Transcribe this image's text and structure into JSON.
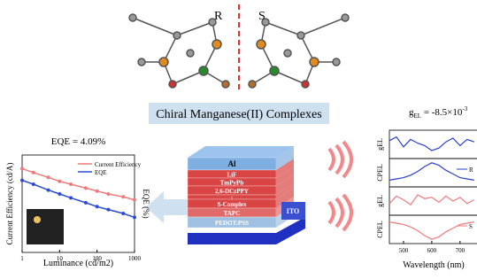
{
  "molecule_labels": [
    "R",
    "S"
  ],
  "banner": "Chiral Manganese(II) Complexes",
  "device": {
    "layers": [
      "Al",
      "LiF",
      "TmPyPb",
      "2,6-DCzPPY",
      ":",
      "S-Complex",
      "TAPC",
      "PEDOT:PSS"
    ],
    "substrate": "ITO"
  },
  "chart_data": [
    {
      "type": "line",
      "title": "EQE = 4.09%",
      "xlabel": "Luminance (cd/m2)",
      "ylabel": "Current Efficiency (cd/A)",
      "y2label": "EQE (%)",
      "log_x": true,
      "xlim": [
        1,
        1000
      ],
      "xticks": [
        1,
        10,
        100,
        1000
      ],
      "ylim": [
        0,
        10
      ],
      "y2lim": [
        0,
        10
      ],
      "legend": "upper right",
      "x": [
        1,
        2,
        5,
        10,
        20,
        50,
        100,
        200,
        500,
        1000
      ],
      "series": [
        {
          "name": "Current Efficiency",
          "color": "#f07a7a",
          "values": [
            8.6,
            8.2,
            7.7,
            7.3,
            7.0,
            6.6,
            6.3,
            6.0,
            5.7,
            5.4
          ]
        },
        {
          "name": "EQE",
          "color": "#2a4bd7",
          "axis": "y2",
          "values": [
            7.4,
            7.0,
            6.4,
            6.0,
            5.6,
            5.1,
            4.7,
            4.4,
            4.0,
            3.6
          ]
        }
      ]
    },
    {
      "type": "stacked-panels",
      "title": [
        "g",
        "EL",
        " = -8.5×10",
        "-3"
      ],
      "xlabel": "Wavelength (nm)",
      "xlim": [
        450,
        760
      ],
      "xticks": [
        500,
        600,
        700
      ],
      "x": [
        450,
        475,
        500,
        525,
        550,
        575,
        600,
        625,
        650,
        675,
        700,
        725,
        750
      ],
      "panels": [
        {
          "ylabel": "gEL",
          "color": "#2a3fd0",
          "ylim": [
            -1,
            1
          ],
          "values": [
            0.3,
            0.6,
            -0.2,
            0.4,
            0.1,
            -0.1,
            -0.5,
            -0.3,
            0.2,
            0.5,
            -0.1,
            0.4,
            0.2
          ]
        },
        {
          "ylabel": "CPEL",
          "name": "R",
          "color": "#2a3fd0",
          "ylim": [
            0,
            1
          ],
          "values": [
            0.2,
            0.25,
            0.3,
            0.4,
            0.55,
            0.75,
            0.9,
            0.8,
            0.6,
            0.45,
            0.3,
            0.25,
            0.2
          ]
        },
        {
          "ylabel": "gEL",
          "color": "#f07a7a",
          "ylim": [
            -1,
            1
          ],
          "values": [
            -0.2,
            0.4,
            0.1,
            -0.3,
            0.5,
            0.2,
            0.3,
            -0.1,
            0.4,
            0.0,
            0.3,
            -0.2,
            0.1
          ]
        },
        {
          "ylabel": "CPEL",
          "name": "S",
          "color": "#f07a7a",
          "ylim": [
            0,
            1
          ],
          "values": [
            0.8,
            0.75,
            0.7,
            0.6,
            0.45,
            0.25,
            0.1,
            0.2,
            0.4,
            0.55,
            0.7,
            0.75,
            0.8
          ]
        }
      ]
    }
  ]
}
